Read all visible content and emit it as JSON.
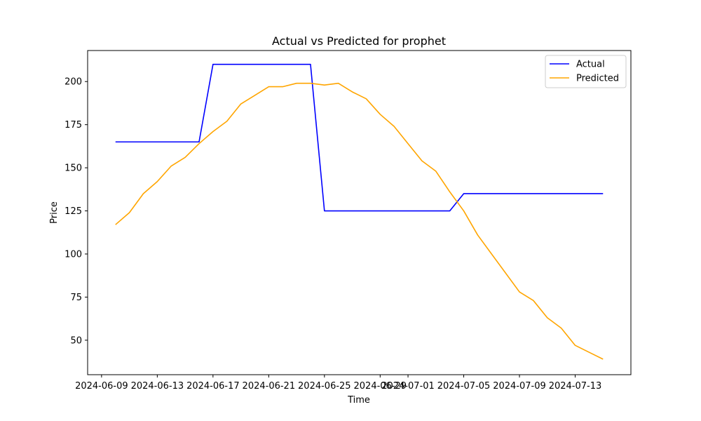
{
  "chart_data": {
    "type": "line",
    "title": "Actual vs Predicted for prophet",
    "xlabel": "Time",
    "ylabel": "Price",
    "x_axis_type": "date",
    "xlim": [
      "2024-06-08",
      "2024-07-17"
    ],
    "ylim": [
      30,
      218
    ],
    "x_ticks": [
      "2024-06-09",
      "2024-06-13",
      "2024-06-17",
      "2024-06-21",
      "2024-06-25",
      "2024-06-29",
      "2024-07-01",
      "2024-07-05",
      "2024-07-09",
      "2024-07-13"
    ],
    "y_ticks": [
      50,
      75,
      100,
      125,
      150,
      175,
      200
    ],
    "grid": false,
    "legend_position": "top-right",
    "x": [
      "2024-06-10",
      "2024-06-11",
      "2024-06-12",
      "2024-06-13",
      "2024-06-14",
      "2024-06-15",
      "2024-06-16",
      "2024-06-17",
      "2024-06-18",
      "2024-06-19",
      "2024-06-20",
      "2024-06-21",
      "2024-06-22",
      "2024-06-23",
      "2024-06-24",
      "2024-06-25",
      "2024-06-26",
      "2024-06-27",
      "2024-06-28",
      "2024-06-29",
      "2024-06-30",
      "2024-07-01",
      "2024-07-02",
      "2024-07-03",
      "2024-07-04",
      "2024-07-05",
      "2024-07-06",
      "2024-07-07",
      "2024-07-08",
      "2024-07-09",
      "2024-07-10",
      "2024-07-11",
      "2024-07-12",
      "2024-07-13",
      "2024-07-14",
      "2024-07-15"
    ],
    "series": [
      {
        "name": "Actual",
        "color": "#0000ff",
        "values": [
          165,
          165,
          165,
          165,
          165,
          165,
          165,
          210,
          210,
          210,
          210,
          210,
          210,
          210,
          210,
          125,
          125,
          125,
          125,
          125,
          125,
          125,
          125,
          125,
          125,
          135,
          135,
          135,
          135,
          135,
          135,
          135,
          135,
          135,
          135,
          135
        ]
      },
      {
        "name": "Predicted",
        "color": "#ffa500",
        "values": [
          117,
          124,
          135,
          142,
          151,
          156,
          164,
          171,
          177,
          187,
          192,
          197,
          197,
          199,
          199,
          198,
          199,
          194,
          190,
          181,
          174,
          164,
          154,
          148,
          136,
          125,
          111,
          100,
          89,
          78,
          73,
          63,
          57,
          47,
          43,
          39
        ]
      }
    ]
  }
}
